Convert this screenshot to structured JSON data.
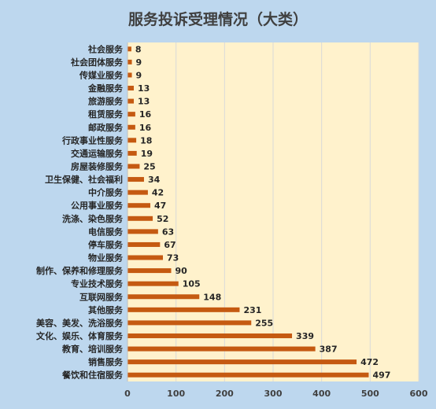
{
  "chart_data": {
    "type": "bar",
    "orientation": "horizontal",
    "title": "服务投诉受理情况（大类）",
    "categories": [
      "社会服务",
      "社会团体服务",
      "传媒业服务",
      "金融服务",
      "旅游服务",
      "租赁服务",
      "邮政服务",
      "行政事业性服务",
      "交通运输服务",
      "房屋装修服务",
      "卫生保健、社会福利",
      "中介服务",
      "公用事业服务",
      "洗涤、染色服务",
      "电信服务",
      "停车服务",
      "物业服务",
      "制作、保养和修理服务",
      "专业技术服务",
      "互联网服务",
      "其他服务",
      "美容、美发、洗浴服务",
      "文化、娱乐、体育服务",
      "教育、培训服务",
      "销售服务",
      "餐饮和住宿服务"
    ],
    "values": [
      8,
      9,
      9,
      13,
      13,
      16,
      16,
      18,
      19,
      25,
      34,
      42,
      47,
      52,
      63,
      67,
      73,
      90,
      105,
      148,
      231,
      255,
      339,
      387,
      472,
      497
    ],
    "xlim": [
      0,
      600
    ],
    "xticks": [
      "0",
      "100",
      "200",
      "300",
      "400",
      "500",
      "600"
    ],
    "grid": true,
    "colors": {
      "bar": "#c55a11",
      "plot_background": "#fff2cc",
      "page_background": "#bdd7ee",
      "gridline": "#d9d9d9"
    }
  }
}
